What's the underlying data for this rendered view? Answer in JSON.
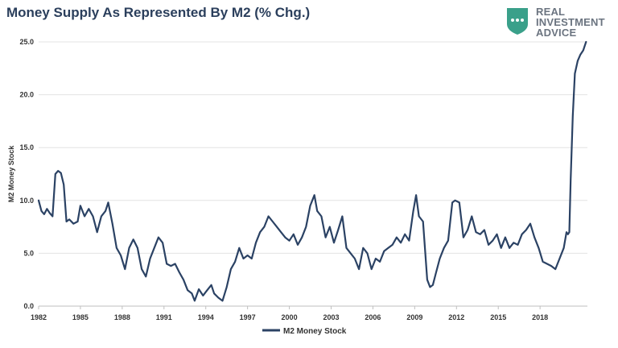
{
  "chart_data": {
    "type": "line",
    "title": "Money Supply As Represented By M2 (% Chg.)",
    "xlabel": "",
    "ylabel": "M2 Money Stock",
    "ylim": [
      0,
      25
    ],
    "xlim": [
      1982,
      2021.4
    ],
    "grid": true,
    "legend_position": "bottom-center",
    "y_ticks": [
      "0.0",
      "5.0",
      "10.0",
      "15.0",
      "20.0",
      "25.0"
    ],
    "x_ticks": [
      "1982",
      "1985",
      "1988",
      "1991",
      "1994",
      "1997",
      "2000",
      "2003",
      "2006",
      "2009",
      "2012",
      "2015",
      "2018"
    ],
    "series": [
      {
        "name": "M2 Money Stock",
        "color": "#2b4264",
        "x": [
          1982.0,
          1982.2,
          1982.4,
          1982.6,
          1982.8,
          1983.0,
          1983.2,
          1983.4,
          1983.6,
          1983.8,
          1984.0,
          1984.2,
          1984.5,
          1984.8,
          1985.0,
          1985.3,
          1985.6,
          1985.9,
          1986.2,
          1986.5,
          1986.8,
          1987.0,
          1987.3,
          1987.6,
          1987.9,
          1988.2,
          1988.5,
          1988.8,
          1989.1,
          1989.4,
          1989.7,
          1990.0,
          1990.3,
          1990.6,
          1990.9,
          1991.2,
          1991.5,
          1991.8,
          1992.1,
          1992.4,
          1992.7,
          1993.0,
          1993.2,
          1993.5,
          1993.8,
          1994.1,
          1994.4,
          1994.6,
          1994.9,
          1995.2,
          1995.5,
          1995.8,
          1996.1,
          1996.4,
          1996.7,
          1997.0,
          1997.3,
          1997.6,
          1997.9,
          1998.2,
          1998.5,
          1998.8,
          1999.1,
          1999.4,
          1999.7,
          2000.0,
          2000.3,
          2000.6,
          2000.9,
          2001.2,
          2001.5,
          2001.8,
          2002.0,
          2002.3,
          2002.6,
          2002.9,
          2003.2,
          2003.5,
          2003.8,
          2004.1,
          2004.4,
          2004.7,
          2005.0,
          2005.3,
          2005.6,
          2005.9,
          2006.2,
          2006.5,
          2006.8,
          2007.1,
          2007.4,
          2007.7,
          2008.0,
          2008.3,
          2008.6,
          2008.9,
          2009.1,
          2009.3,
          2009.6,
          2009.9,
          2010.1,
          2010.3,
          2010.5,
          2010.8,
          2011.1,
          2011.4,
          2011.7,
          2011.9,
          2012.2,
          2012.5,
          2012.8,
          2013.1,
          2013.4,
          2013.7,
          2014.0,
          2014.3,
          2014.6,
          2014.9,
          2015.2,
          2015.5,
          2015.8,
          2016.1,
          2016.4,
          2016.7,
          2017.0,
          2017.3,
          2017.6,
          2017.9,
          2018.2,
          2018.5,
          2018.8,
          2019.1,
          2019.4,
          2019.7,
          2019.9,
          2020.0,
          2020.1,
          2020.2,
          2020.35,
          2020.5,
          2020.7,
          2020.9,
          2021.1,
          2021.3
        ],
        "values": [
          10.0,
          9.0,
          8.7,
          9.2,
          8.8,
          8.5,
          12.5,
          12.8,
          12.6,
          11.5,
          8.0,
          8.2,
          7.8,
          8.0,
          9.5,
          8.5,
          9.2,
          8.5,
          7.0,
          8.5,
          9.0,
          9.8,
          7.8,
          5.5,
          4.8,
          3.5,
          5.5,
          6.3,
          5.5,
          3.5,
          2.8,
          4.5,
          5.5,
          6.5,
          6.0,
          4.0,
          3.8,
          4.0,
          3.2,
          2.5,
          1.5,
          1.2,
          0.5,
          1.6,
          1.0,
          1.5,
          2.0,
          1.2,
          0.8,
          0.5,
          1.8,
          3.5,
          4.2,
          5.5,
          4.5,
          4.8,
          4.5,
          6.0,
          7.0,
          7.5,
          8.5,
          8.0,
          7.5,
          7.0,
          6.5,
          6.2,
          6.8,
          5.8,
          6.5,
          7.5,
          9.5,
          10.5,
          9.0,
          8.5,
          6.5,
          7.5,
          6.0,
          7.2,
          8.5,
          5.5,
          5.0,
          4.5,
          3.5,
          5.5,
          5.0,
          3.5,
          4.5,
          4.2,
          5.2,
          5.5,
          5.8,
          6.5,
          6.0,
          6.8,
          6.2,
          9.0,
          10.5,
          8.5,
          8.0,
          2.5,
          1.8,
          2.0,
          3.0,
          4.5,
          5.5,
          6.2,
          9.8,
          10.0,
          9.8,
          6.5,
          7.2,
          8.5,
          7.0,
          6.8,
          7.2,
          5.8,
          6.2,
          6.8,
          5.5,
          6.5,
          5.5,
          6.0,
          5.8,
          6.8,
          7.2,
          7.8,
          6.5,
          5.5,
          4.2,
          4.0,
          3.8,
          3.5,
          4.5,
          5.5,
          7.0,
          6.8,
          7.0,
          12.0,
          18.0,
          22.0,
          23.2,
          23.8,
          24.2,
          25.0
        ]
      }
    ]
  },
  "logo": {
    "line1": "REAL",
    "line2": "INVESTMENT",
    "line3": "ADVICE",
    "icon": "chat-shield-icon",
    "color": "#3aa08a"
  }
}
